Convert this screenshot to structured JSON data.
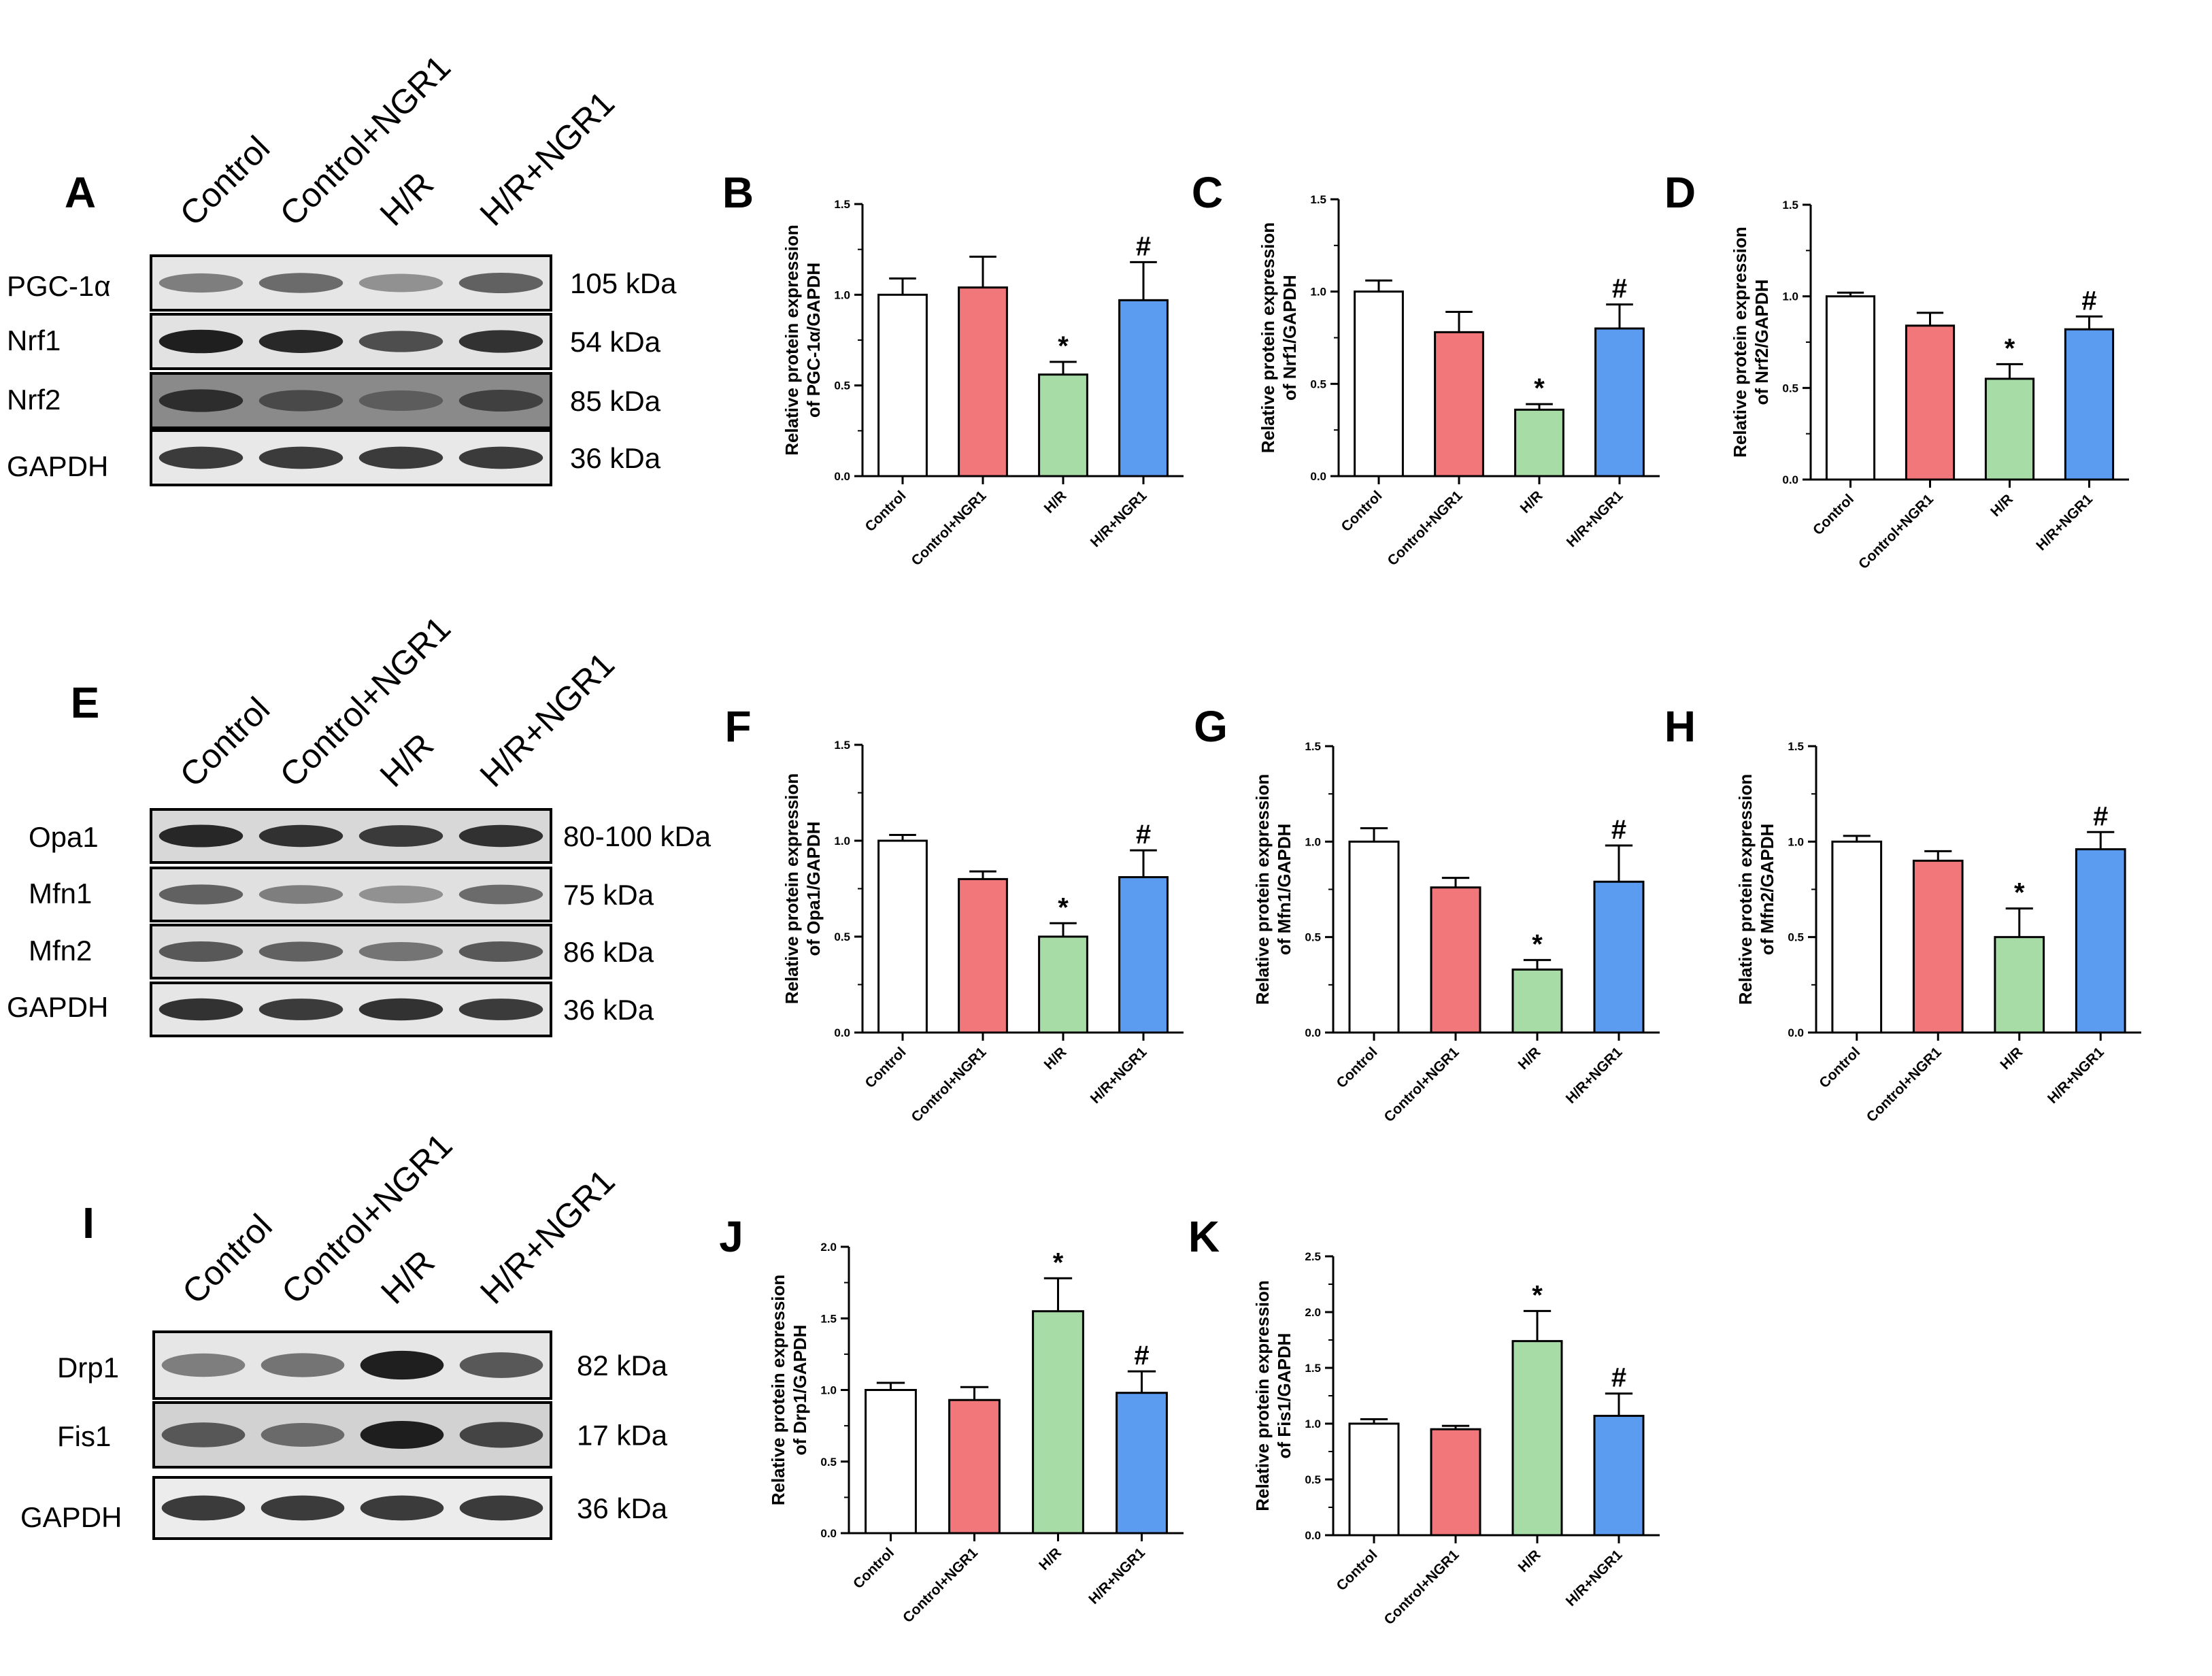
{
  "colors": {
    "Control": "#ffffff",
    "Control+NGR1": "#f1777a",
    "H/R": "#a8dca7",
    "H/R+NGR1": "#5b9bf0"
  },
  "blots": [
    {
      "letter": "A",
      "lanes": [
        "Control",
        "Control+NGR1",
        "H/R",
        "H/R+NGR1"
      ],
      "rows": [
        {
          "protein": "PGC-1α",
          "kda": "105 kDa",
          "intensity": [
            0.45,
            0.55,
            0.35,
            0.6
          ],
          "bg": "#e6e6e6"
        },
        {
          "protein": "Nrf1",
          "kda": "54  kDa",
          "intensity": [
            0.95,
            0.9,
            0.7,
            0.85
          ],
          "bg": "#e2e2e2"
        },
        {
          "protein": "Nrf2",
          "kda": "85  kDa",
          "intensity": [
            0.85,
            0.7,
            0.6,
            0.75
          ],
          "bg": "#8a8a8a"
        },
        {
          "protein": "GAPDH",
          "kda": "36  kDa",
          "intensity": [
            0.8,
            0.8,
            0.8,
            0.8
          ],
          "bg": "#e8e8e8"
        }
      ]
    },
    {
      "letter": "E",
      "lanes": [
        "Control",
        "Control+NGR1",
        "H/R",
        "H/R+NGR1"
      ],
      "rows": [
        {
          "protein": "Opa1",
          "kda": "80-100  kDa",
          "intensity": [
            0.9,
            0.85,
            0.8,
            0.85
          ],
          "bg": "#d8d8d8"
        },
        {
          "protein": "Mfn1",
          "kda": "75  kDa",
          "intensity": [
            0.6,
            0.45,
            0.35,
            0.55
          ],
          "bg": "#e0e0e0"
        },
        {
          "protein": "Mfn2",
          "kda": "86  kDa",
          "intensity": [
            0.65,
            0.6,
            0.5,
            0.65
          ],
          "bg": "#dddddd"
        },
        {
          "protein": "GAPDH",
          "kda": "36  kDa",
          "intensity": [
            0.85,
            0.8,
            0.85,
            0.8
          ],
          "bg": "#e6e6e6"
        }
      ]
    },
    {
      "letter": "I",
      "lanes": [
        "Control",
        "Control+NGR1",
        "H/R",
        "H/R+NGR1"
      ],
      "rows": [
        {
          "protein": "Drp1",
          "kda": "82  kDa",
          "intensity": [
            0.45,
            0.5,
            0.95,
            0.65
          ],
          "bg": "#e6e6e6"
        },
        {
          "protein": "Fis1",
          "kda": "17  kDa",
          "intensity": [
            0.65,
            0.55,
            0.95,
            0.75
          ],
          "bg": "#d2d2d2"
        },
        {
          "protein": "GAPDH",
          "kda": "36  kDa",
          "intensity": [
            0.8,
            0.8,
            0.8,
            0.8
          ],
          "bg": "#ececec"
        }
      ]
    }
  ],
  "chart_data": [
    {
      "letter": "B",
      "type": "bar",
      "categories": [
        "Control",
        "Control+NGR1",
        "H/R",
        "H/R+NGR1"
      ],
      "values": [
        1.0,
        1.04,
        0.56,
        0.97
      ],
      "errors": [
        0.09,
        0.17,
        0.07,
        0.21
      ],
      "marks": [
        "",
        "",
        "*",
        "#"
      ],
      "ylabel1": "Relative protein expression",
      "ylabel2": "of PGC-1α/GAPDH",
      "ylim": [
        0,
        1.5
      ],
      "yticks": [
        "0.0",
        "0.5",
        "1.0",
        "1.5"
      ]
    },
    {
      "letter": "C",
      "type": "bar",
      "categories": [
        "Control",
        "Control+NGR1",
        "H/R",
        "H/R+NGR1"
      ],
      "values": [
        1.0,
        0.78,
        0.36,
        0.8
      ],
      "errors": [
        0.06,
        0.11,
        0.03,
        0.13
      ],
      "marks": [
        "",
        "",
        "*",
        "#"
      ],
      "ylabel1": "Relative protein expression",
      "ylabel2": "of Nrf1/GAPDH",
      "ylim": [
        0,
        1.5
      ],
      "yticks": [
        "0.0",
        "0.5",
        "1.0",
        "1.5"
      ]
    },
    {
      "letter": "D",
      "type": "bar",
      "categories": [
        "Control",
        "Control+NGR1",
        "H/R",
        "H/R+NGR1"
      ],
      "values": [
        1.0,
        0.84,
        0.55,
        0.82
      ],
      "errors": [
        0.02,
        0.07,
        0.08,
        0.07
      ],
      "marks": [
        "",
        "",
        "*",
        "#"
      ],
      "ylabel1": "Relative protein expression",
      "ylabel2": "of Nrf2/GAPDH",
      "ylim": [
        0,
        1.5
      ],
      "yticks": [
        "0.0",
        "0.5",
        "1.0",
        "1.5"
      ]
    },
    {
      "letter": "F",
      "type": "bar",
      "categories": [
        "Control",
        "Control+NGR1",
        "H/R",
        "H/R+NGR1"
      ],
      "values": [
        1.0,
        0.8,
        0.5,
        0.81
      ],
      "errors": [
        0.03,
        0.04,
        0.07,
        0.14
      ],
      "marks": [
        "",
        "",
        "*",
        "#"
      ],
      "ylabel1": "Relative protein expression",
      "ylabel2": "of Opa1/GAPDH",
      "ylim": [
        0,
        1.5
      ],
      "yticks": [
        "0.0",
        "0.5",
        "1.0",
        "1.5"
      ]
    },
    {
      "letter": "G",
      "type": "bar",
      "categories": [
        "Control",
        "Control+NGR1",
        "H/R",
        "H/R+NGR1"
      ],
      "values": [
        1.0,
        0.76,
        0.33,
        0.79
      ],
      "errors": [
        0.07,
        0.05,
        0.05,
        0.19
      ],
      "marks": [
        "",
        "",
        "*",
        "#"
      ],
      "ylabel1": "Relative protein expression",
      "ylabel2": "of Mfn1/GAPDH",
      "ylim": [
        0,
        1.5
      ],
      "yticks": [
        "0.0",
        "0.5",
        "1.0",
        "1.5"
      ]
    },
    {
      "letter": "H",
      "type": "bar",
      "categories": [
        "Control",
        "Control+NGR1",
        "H/R",
        "H/R+NGR1"
      ],
      "values": [
        1.0,
        0.9,
        0.5,
        0.96
      ],
      "errors": [
        0.03,
        0.05,
        0.15,
        0.09
      ],
      "marks": [
        "",
        "",
        "*",
        "#"
      ],
      "ylabel1": "Relative protein expression",
      "ylabel2": "of Mfn2/GAPDH",
      "ylim": [
        0,
        1.5
      ],
      "yticks": [
        "0.0",
        "0.5",
        "1.0",
        "1.5"
      ]
    },
    {
      "letter": "J",
      "type": "bar",
      "categories": [
        "Control",
        "Control+NGR1",
        "H/R",
        "H/R+NGR1"
      ],
      "values": [
        1.0,
        0.93,
        1.55,
        0.98
      ],
      "errors": [
        0.05,
        0.09,
        0.23,
        0.15
      ],
      "marks": [
        "",
        "",
        "*",
        "#"
      ],
      "ylabel1": "Relative protein expression",
      "ylabel2": "of Drp1/GAPDH",
      "ylim": [
        0,
        2.0
      ],
      "yticks": [
        "0.0",
        "0.5",
        "1.0",
        "1.5",
        "2.0"
      ]
    },
    {
      "letter": "K",
      "type": "bar",
      "categories": [
        "Control",
        "Control+NGR1",
        "H/R",
        "H/R+NGR1"
      ],
      "values": [
        1.0,
        0.95,
        1.74,
        1.07
      ],
      "errors": [
        0.04,
        0.03,
        0.27,
        0.2
      ],
      "marks": [
        "",
        "",
        "*",
        "#"
      ],
      "ylabel1": "Relative protein expression",
      "ylabel2": "of Fis1/GAPDH",
      "ylim": [
        0,
        2.5
      ],
      "yticks": [
        "0.0",
        "0.5",
        "1.0",
        "1.5",
        "2.0",
        "2.5"
      ]
    }
  ]
}
